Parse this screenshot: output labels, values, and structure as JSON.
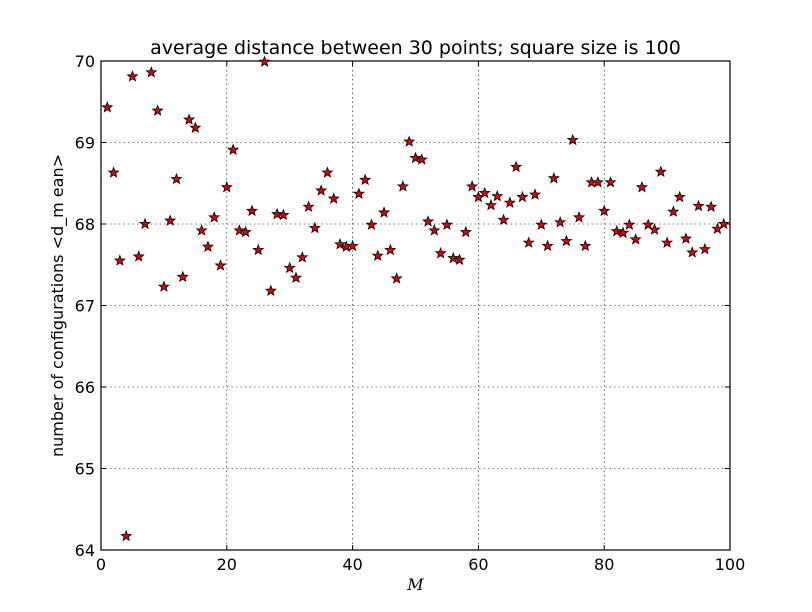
{
  "chart_data": {
    "type": "scatter",
    "title": "average distance between 30 points; square size is 100",
    "xlabel": "M",
    "ylabel": "number of configurations <d_m ean>",
    "xlim": [
      0,
      100
    ],
    "ylim": [
      64,
      70
    ],
    "xticks": [
      "0",
      "20",
      "40",
      "60",
      "80",
      "100"
    ],
    "yticks": [
      "64",
      "65",
      "66",
      "67",
      "68",
      "69",
      "70"
    ],
    "grid": true,
    "marker": "star",
    "marker_color": "#e00000",
    "series": [
      {
        "x": [
          1,
          2,
          3,
          4,
          5,
          6,
          7,
          8,
          9,
          10,
          11,
          12,
          13,
          14,
          15,
          16,
          17,
          18,
          19,
          20,
          21,
          22,
          23,
          24,
          25,
          26,
          27,
          28,
          29,
          30,
          31,
          32,
          33,
          34,
          35,
          36,
          37,
          38,
          39,
          40,
          41,
          42,
          43,
          44,
          45,
          46,
          47,
          48,
          49,
          50,
          51,
          52,
          53,
          54,
          55,
          56,
          57,
          58,
          59,
          60,
          61,
          62,
          63,
          64,
          65,
          66,
          67,
          68,
          69,
          70,
          71,
          72,
          73,
          74,
          75,
          76,
          77,
          78,
          79,
          80,
          81,
          82,
          83,
          84,
          85,
          86,
          87,
          88,
          89,
          90,
          91,
          92,
          93,
          94,
          95,
          96,
          97,
          98,
          99
        ],
        "y": [
          69.43,
          68.63,
          67.55,
          64.17,
          69.81,
          67.6,
          68.0,
          69.86,
          69.39,
          67.23,
          68.04,
          68.55,
          67.35,
          69.28,
          69.18,
          67.92,
          67.72,
          68.08,
          67.49,
          68.45,
          68.91,
          67.92,
          67.9,
          68.16,
          67.68,
          69.99,
          67.18,
          68.12,
          68.11,
          67.46,
          67.34,
          67.59,
          68.21,
          67.95,
          68.41,
          68.63,
          68.31,
          67.75,
          67.72,
          67.73,
          68.37,
          68.54,
          67.99,
          67.61,
          68.14,
          67.68,
          67.33,
          68.46,
          69.01,
          68.81,
          68.79,
          68.03,
          67.92,
          67.64,
          67.99,
          67.58,
          67.56,
          67.9,
          68.46,
          68.33,
          68.38,
          68.23,
          68.34,
          68.05,
          68.26,
          68.7,
          68.33,
          67.77,
          68.36,
          67.99,
          67.73,
          68.56,
          68.02,
          67.79,
          69.03,
          68.08,
          67.73,
          68.51,
          68.51,
          68.16,
          68.51,
          67.91,
          67.89,
          67.99,
          67.81,
          68.45,
          67.99,
          67.93,
          68.64,
          67.77,
          68.15,
          68.33,
          67.82,
          67.65,
          68.22,
          67.69,
          68.21,
          67.94,
          68.0
        ]
      }
    ]
  }
}
